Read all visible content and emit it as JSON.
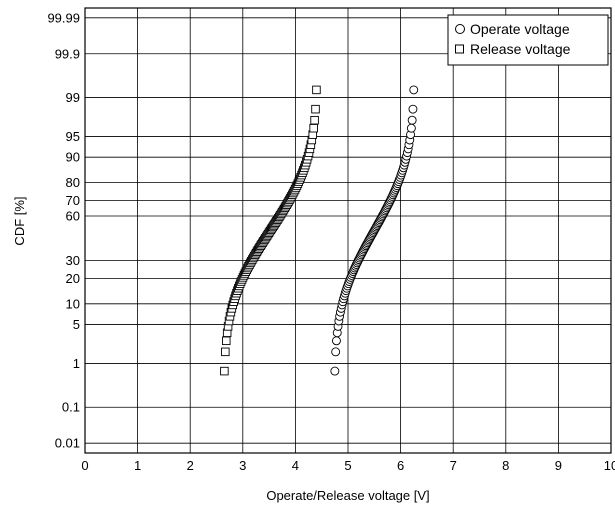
{
  "chart_data": {
    "type": "scatter",
    "title": "",
    "xlabel": "Operate/Release voltage [V]",
    "ylabel": "CDF  [%]",
    "xlim": [
      0,
      10
    ],
    "x_ticks": [
      "0",
      "1",
      "2",
      "3",
      "4",
      "5",
      "6",
      "7",
      "8",
      "9",
      "10"
    ],
    "y_scale": "normal-probability",
    "y_ticks": [
      {
        "value": 0.01,
        "label": "0.01"
      },
      {
        "value": 0.1,
        "label": "0.1"
      },
      {
        "value": 1,
        "label": "1"
      },
      {
        "value": 5,
        "label": "5"
      },
      {
        "value": 10,
        "label": "10"
      },
      {
        "value": 20,
        "label": "20"
      },
      {
        "value": 30,
        "label": "30"
      },
      {
        "value": 60,
        "label": "60"
      },
      {
        "value": 70,
        "label": "70"
      },
      {
        "value": 80,
        "label": "80"
      },
      {
        "value": 90,
        "label": "90"
      },
      {
        "value": 95,
        "label": "95"
      },
      {
        "value": 99,
        "label": "99"
      },
      {
        "value": 99.9,
        "label": "99.9"
      },
      {
        "value": 99.99,
        "label": "99.99"
      }
    ],
    "grid": true,
    "legend_position": "top-right",
    "series": [
      {
        "name": "Operate voltage",
        "marker": "circle",
        "n_points": 100,
        "x_min": 4.75,
        "x_max": 6.25
      },
      {
        "name": "Release voltage",
        "marker": "square",
        "n_points": 100,
        "x_min": 2.65,
        "x_max": 4.4
      }
    ]
  }
}
